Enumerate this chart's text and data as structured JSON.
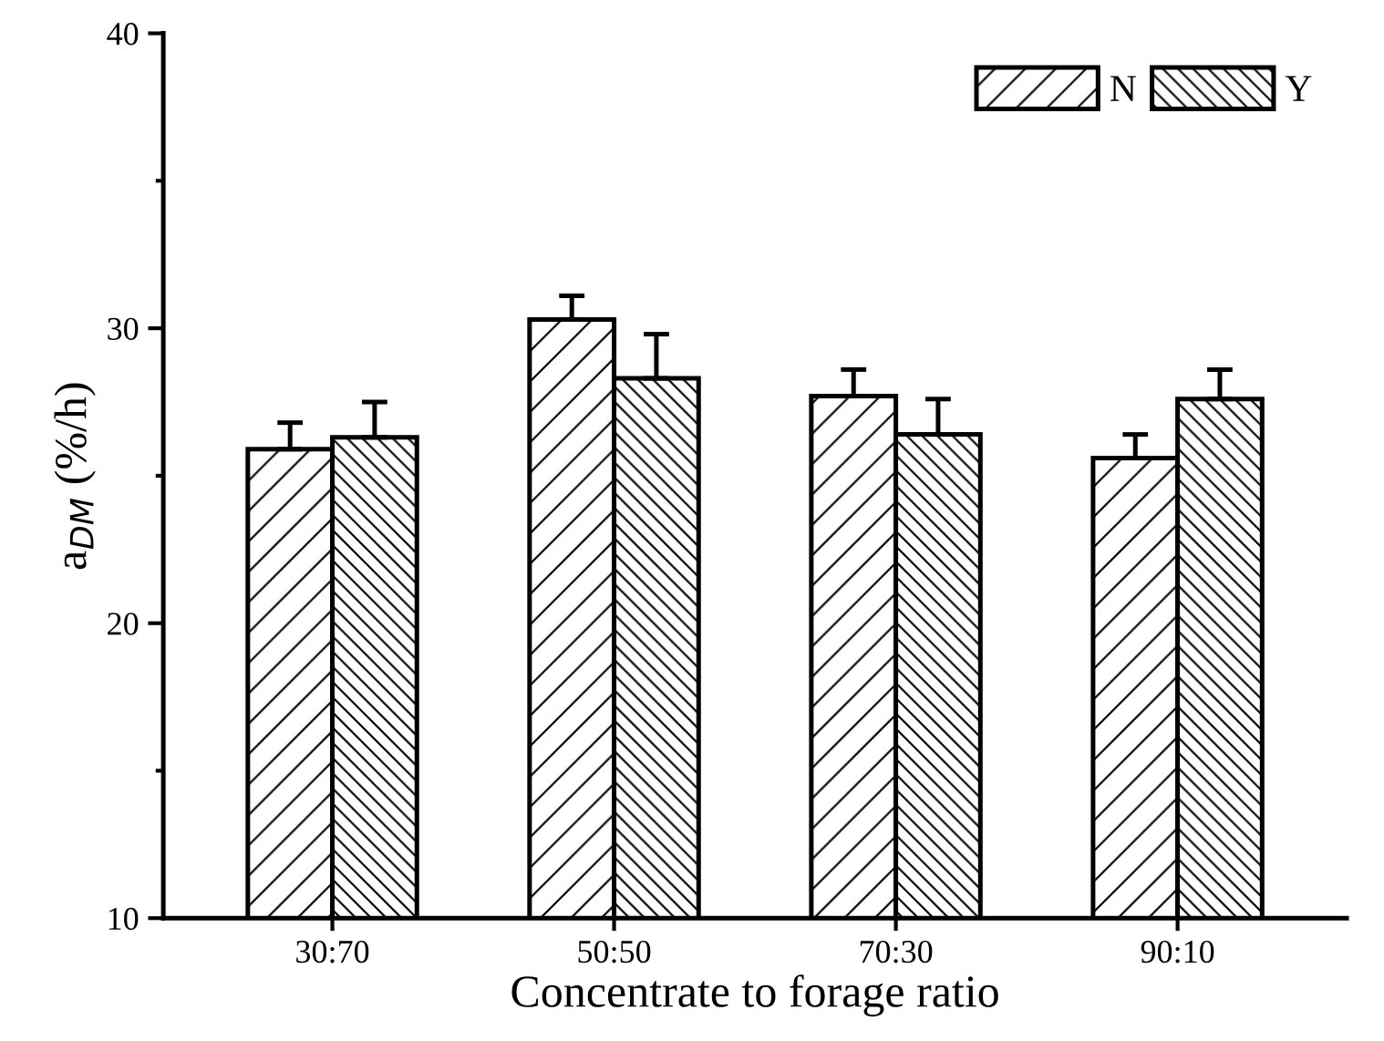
{
  "chart_data": {
    "type": "bar",
    "xlabel": "Concentrate to forage ratio",
    "ylabel": "a$_{DM}$ (%/h)",
    "categories": [
      "30:70",
      "50:50",
      "70:30",
      "90:10"
    ],
    "series": [
      {
        "name": "N",
        "color": "#000000",
        "values": [
          25.9,
          30.3,
          27.7,
          25.6
        ],
        "errors": [
          [
            25.9,
            26.8
          ],
          [
            30.3,
            31.1
          ],
          [
            27.7,
            28.6
          ],
          [
            25.6,
            26.4
          ]
        ]
      },
      {
        "name": "Y",
        "color": "#000000",
        "values": [
          26.3,
          28.3,
          26.4,
          27.6
        ],
        "errors": [
          [
            26.3,
            27.5
          ],
          [
            28.3,
            29.8
          ],
          [
            26.4,
            27.6
          ],
          [
            27.6,
            28.6
          ]
        ]
      }
    ],
    "ylim": [
      10,
      40
    ],
    "yticks": [
      10,
      {
        "value": 15,
        "label": null
      },
      20,
      {
        "value": 25,
        "label": null
      },
      30,
      {
        "value": 35,
        "label": null
      },
      40
    ],
    "legend": "top right",
    "grid": false
  }
}
